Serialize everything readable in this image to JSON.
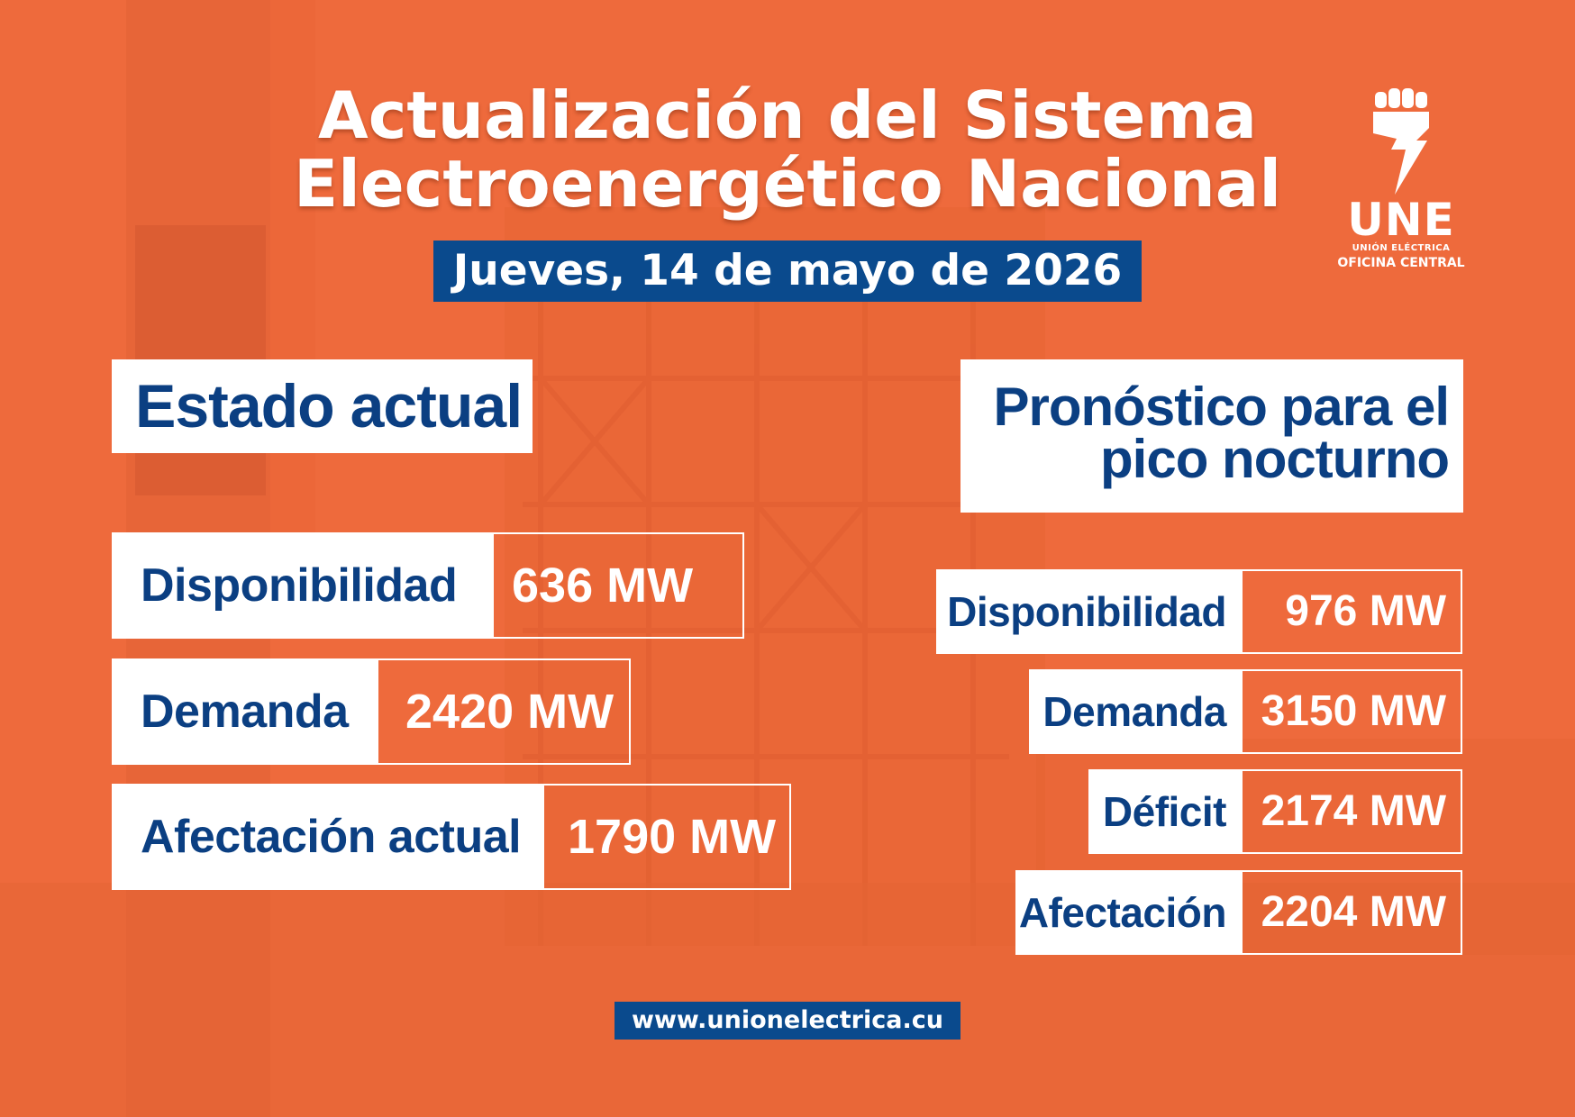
{
  "header": {
    "title_line1": "Actualización del Sistema",
    "title_line2": "Electroenergético Nacional",
    "date": "Jueves, 14 de mayo de 2026"
  },
  "logo": {
    "name": "UNE",
    "subtitle1": "UNIÓN ELÉCTRICA",
    "subtitle2": "OFICINA CENTRAL",
    "icon": "fist-lightning-icon"
  },
  "estado_actual": {
    "title": "Estado actual",
    "rows": [
      {
        "label": "Disponibilidad",
        "value": "636 MW"
      },
      {
        "label": "Demanda",
        "value": "2420 MW"
      },
      {
        "label": "Afectación actual",
        "value": "1790 MW"
      }
    ]
  },
  "pronostico": {
    "title_line1": "Pronóstico para el",
    "title_line2": "pico nocturno",
    "rows": [
      {
        "label": "Disponibilidad",
        "value": "976 MW"
      },
      {
        "label": "Demanda",
        "value": "3150 MW"
      },
      {
        "label": "Déficit",
        "value": "2174 MW"
      },
      {
        "label": "Afectación",
        "value": "2204 MW"
      }
    ]
  },
  "footer": {
    "url": "www.unionelectrica.cu"
  },
  "colors": {
    "background": "#ee6a3c",
    "navy": "#0a4a8d",
    "label_text": "#0b3f82",
    "white": "#ffffff"
  }
}
